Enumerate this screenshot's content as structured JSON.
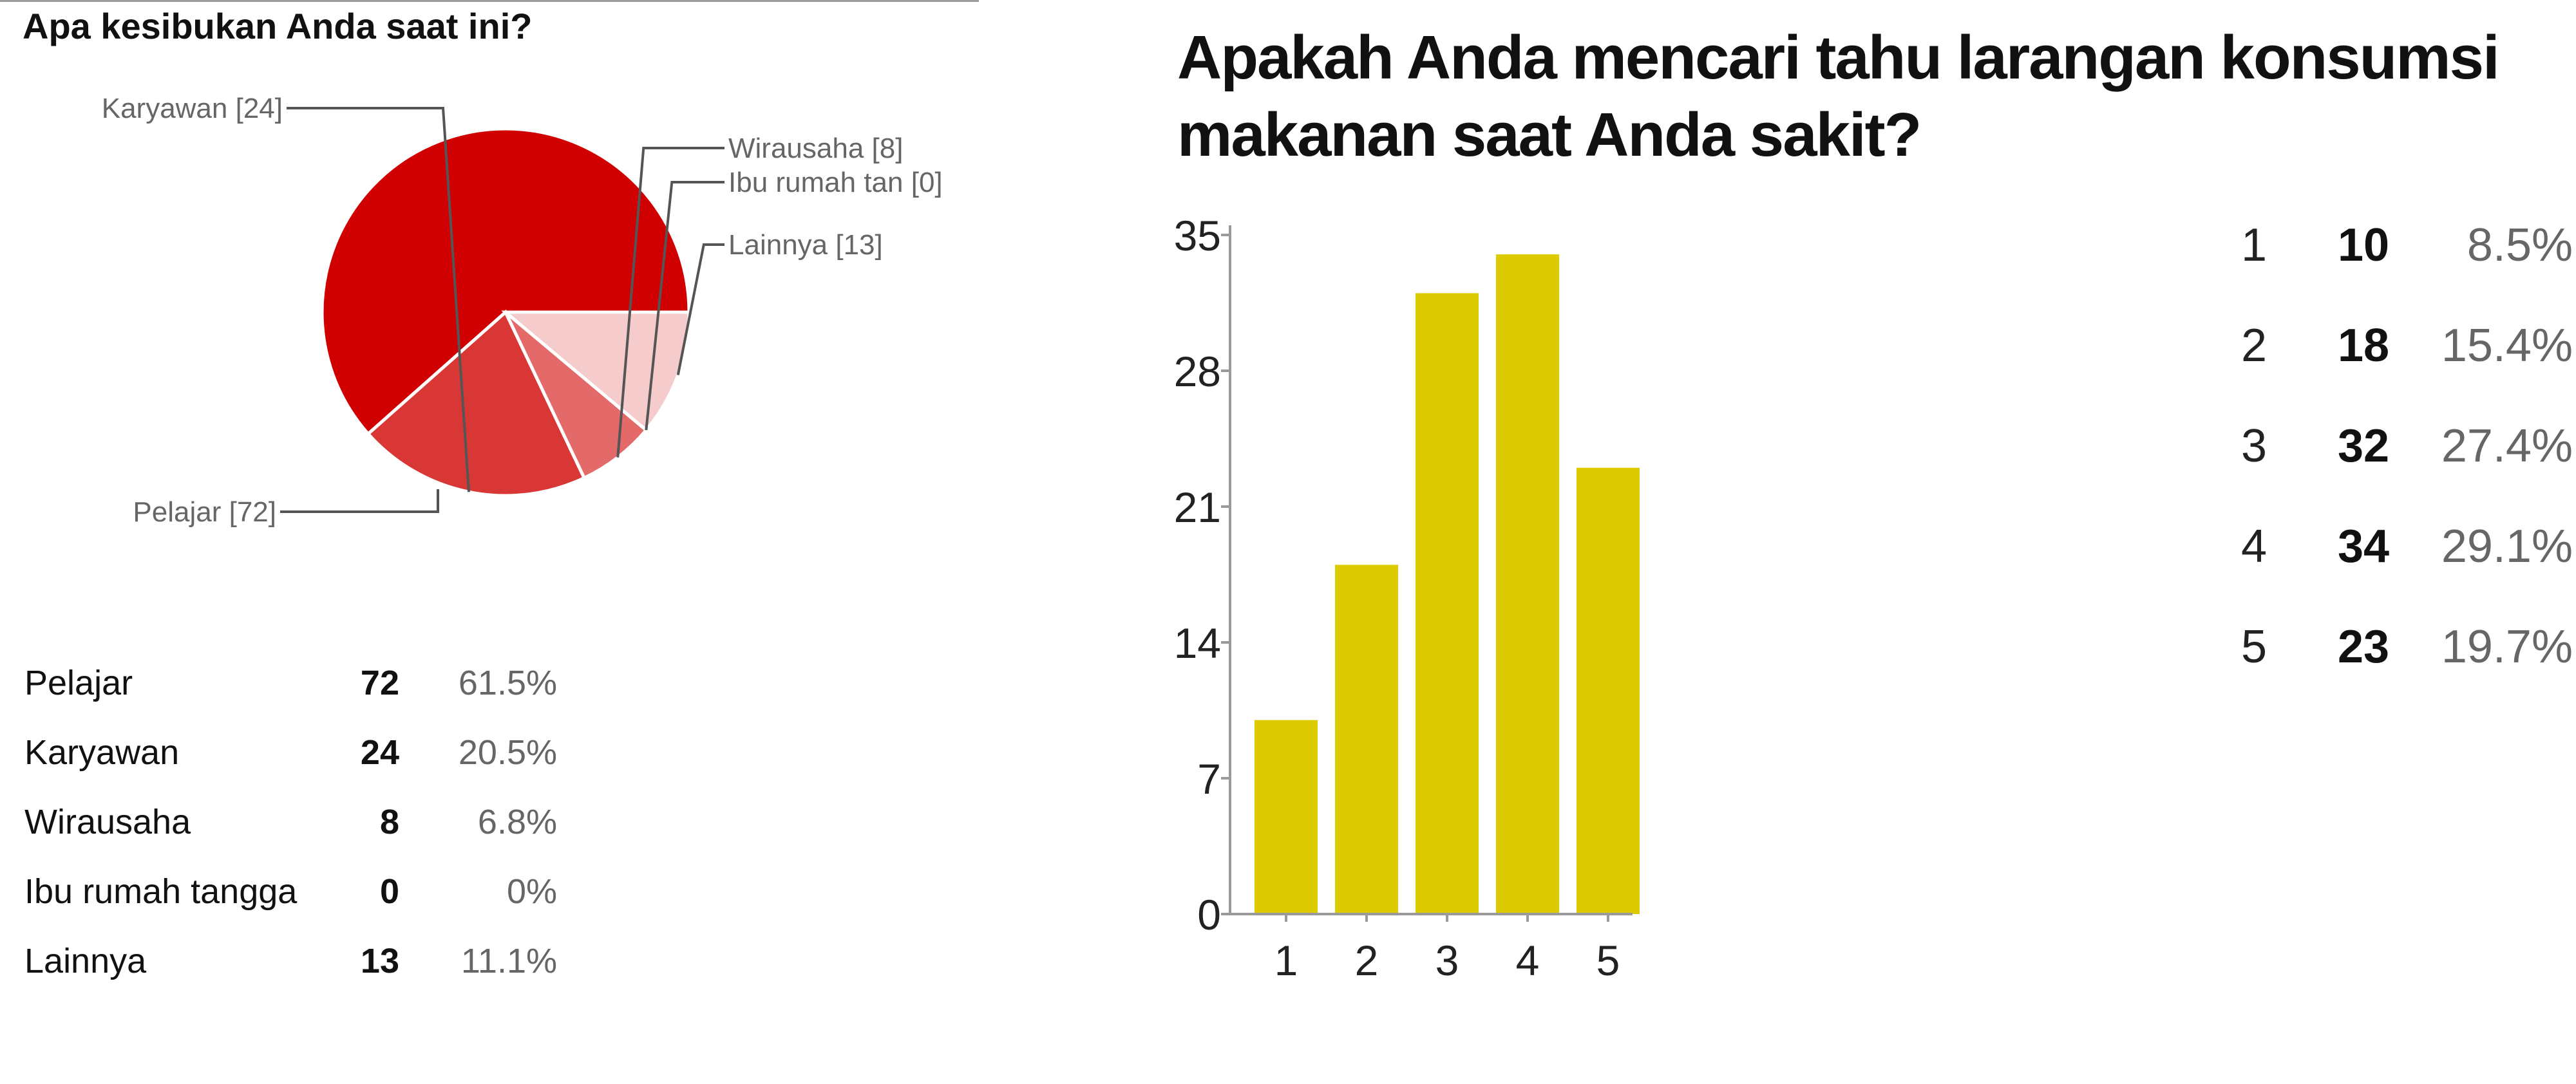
{
  "chart_data": [
    {
      "type": "pie",
      "title": "Apa kesibukan Anda saat ini?",
      "slices": [
        {
          "name": "Pelajar",
          "value": 72,
          "percent": "61.5%",
          "label": "Pelajar [72]",
          "color": "#d10000"
        },
        {
          "name": "Karyawan",
          "value": 24,
          "percent": "20.5%",
          "label": "Karyawan [24]",
          "color": "#d93636"
        },
        {
          "name": "Wirausaha",
          "value": 8,
          "percent": "6.8%",
          "label": "Wirausaha [8]",
          "color": "#e46a6a"
        },
        {
          "name": "Ibu rumah tangga",
          "value": 0,
          "percent": "0%",
          "label": "Ibu rumah tan [0]",
          "color": "#ee9999"
        },
        {
          "name": "Lainnya",
          "value": 13,
          "percent": "11.1%",
          "label": "Lainnya [13]",
          "color": "#f5cbcb"
        }
      ]
    },
    {
      "type": "bar",
      "title": "Apakah Anda mencari tahu larangan konsumsi makanan saat Anda sakit?",
      "categories": [
        "1",
        "2",
        "3",
        "4",
        "5"
      ],
      "values": [
        10,
        18,
        32,
        34,
        23
      ],
      "percents": [
        "8.5%",
        "15.4%",
        "27.4%",
        "29.1%",
        "19.7%"
      ],
      "ylim": [
        0,
        35
      ],
      "yticks": [
        "0",
        "7",
        "14",
        "21",
        "28",
        "35"
      ],
      "color": "#dccb00",
      "grid": false
    }
  ]
}
